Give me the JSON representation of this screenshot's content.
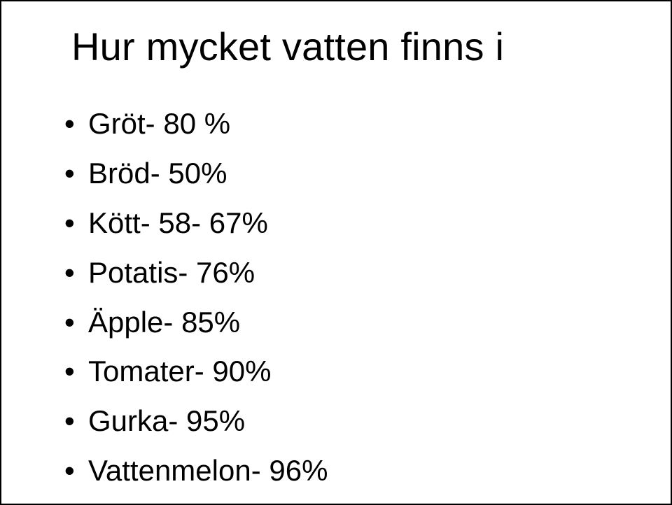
{
  "title": "Hur mycket vatten finns i",
  "items": [
    "Gröt- 80 %",
    "Bröd- 50%",
    "Kött- 58- 67%",
    "Potatis- 76%",
    "Äpple- 85%",
    "Tomater- 90%",
    "Gurka- 95%",
    "Vattenmelon- 96%"
  ]
}
